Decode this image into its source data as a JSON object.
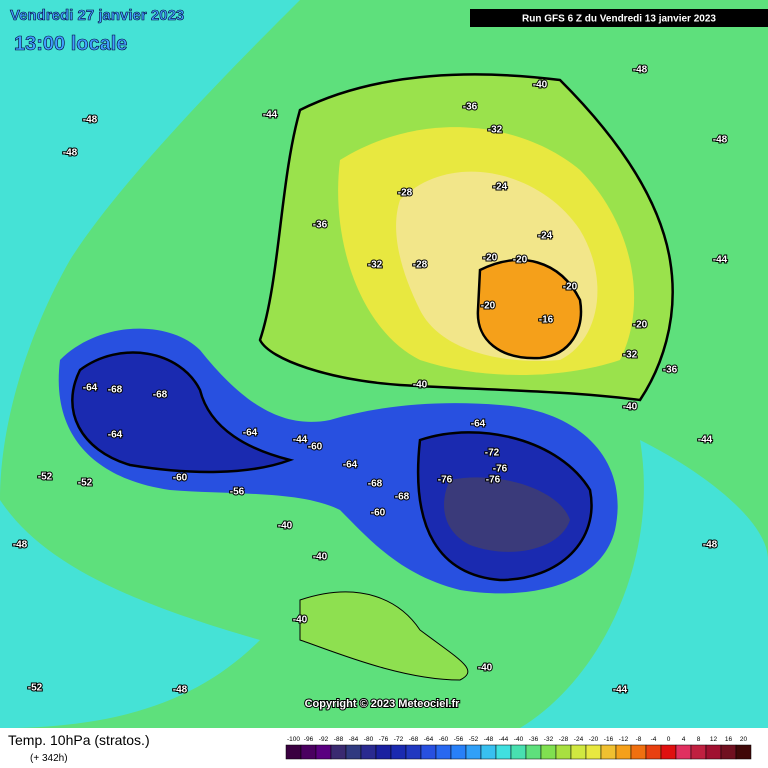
{
  "date": "Vendredi 27 janvier 2023",
  "local_time": "13:00 locale",
  "run_info": "Run GFS 6 Z du Vendredi 13 janvier 2023",
  "copyright": "Copyright © 2023 Meteociel.fr",
  "field_title": "Temp. 10hPa (stratos.)",
  "forecast_hour": "(+ 342h)",
  "contour_labels": [
    -48,
    -48,
    -44,
    -40,
    -36,
    -32,
    -28,
    -24,
    -24,
    -28,
    -32,
    -36,
    -20,
    -20,
    -20,
    -20,
    -16,
    -20,
    -32,
    -36,
    -40,
    -40,
    -44,
    -64,
    -68,
    -68,
    -64,
    -60,
    -56,
    -64,
    -60,
    -64,
    -68,
    -60,
    -68,
    -64,
    -72,
    -76,
    -76,
    -76,
    -52,
    -52,
    -48,
    -40,
    -40,
    -40,
    -40,
    -44,
    -48,
    -44,
    -48,
    -48,
    -52,
    -48,
    -44
  ],
  "scale": {
    "labels": [
      -100,
      -96,
      -92,
      -88,
      -84,
      -80,
      -76,
      -72,
      -68,
      -64,
      -60,
      -56,
      -52,
      -48,
      -44,
      -40,
      -36,
      -32,
      -28,
      -24,
      -20,
      -16,
      -12,
      -8,
      -4,
      0,
      4,
      8,
      12,
      16,
      20
    ],
    "colors": [
      "#3a0040",
      "#4a0060",
      "#5a0080",
      "#3a2a70",
      "#303a80",
      "#2a2a90",
      "#1a20a0",
      "#1a2ab0",
      "#2038c0",
      "#2850e0",
      "#2868f0",
      "#2880f8",
      "#30a0f8",
      "#38c0f0",
      "#40e0e0",
      "#48e0b0",
      "#5ee07c",
      "#80e050",
      "#a8e040",
      "#d0e840",
      "#e8e840",
      "#f0c030",
      "#f5a01a",
      "#f07010",
      "#e84010",
      "#e01010",
      "#e03060",
      "#c02040",
      "#a01030",
      "#701020",
      "#400808"
    ]
  }
}
